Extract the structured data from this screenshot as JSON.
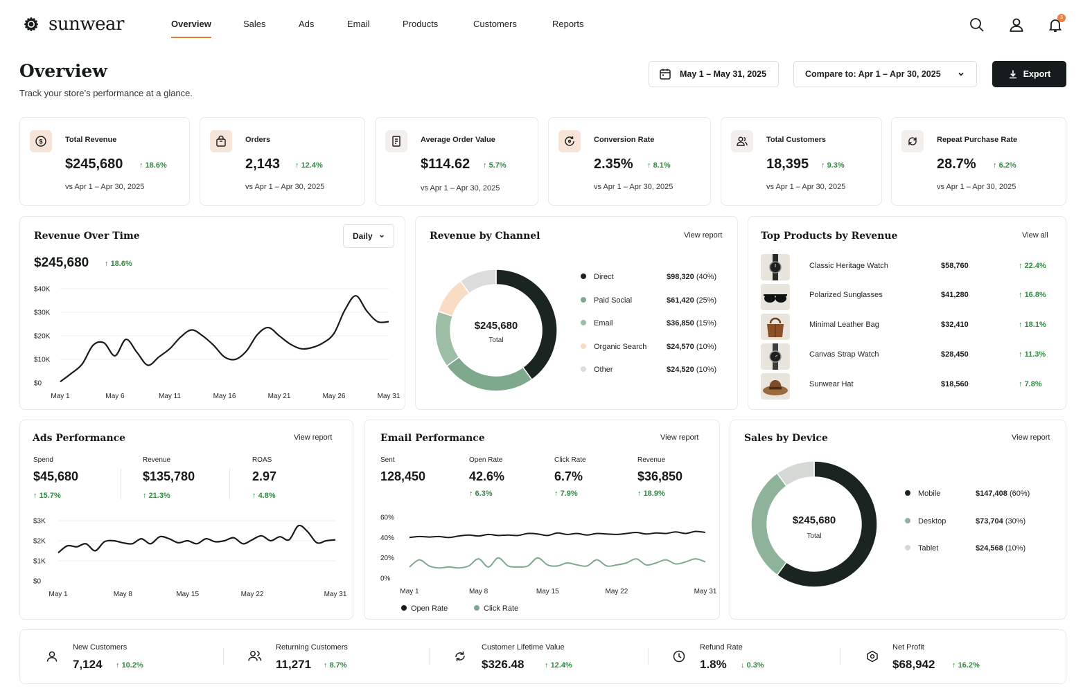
{
  "brand": {
    "name": "sunwear",
    "accent": "#e07a3f",
    "dark": "#161c1b",
    "green": "#2f8b3f"
  },
  "nav": {
    "tabs": [
      "Overview",
      "Sales",
      "Ads",
      "Email",
      "Products",
      "Customers",
      "Reports"
    ],
    "active": "Overview",
    "notification_count": "3"
  },
  "header": {
    "title": "Overview",
    "subtitle": "Track your store’s performance at a glance.",
    "date_range": "May 1 – May 31, 2025",
    "compare": "Compare to: Apr 1 – Apr 30, 2025",
    "export_label": "Export"
  },
  "kpis": [
    {
      "label": "Total Revenue",
      "value": "$245,680",
      "change": "18.6%",
      "vs": "vs Apr 1 – Apr 30, 2025",
      "icon": "dollar-icon"
    },
    {
      "label": "Orders",
      "value": "2,143",
      "change": "12.4%",
      "vs": "vs Apr 1 – Apr 30, 2025",
      "icon": "shopping-bag-icon"
    },
    {
      "label": "Average Order Value",
      "value": "$114.62",
      "change": "5.7%",
      "vs": "vs Apr 1 – Apr 30, 2025",
      "icon": "receipt-icon"
    },
    {
      "label": "Conversion Rate",
      "value": "2.35%",
      "change": "8.1%",
      "vs": "vs Apr 1 – Apr 30, 2025",
      "icon": "refresh-icon"
    },
    {
      "label": "Total Customers",
      "value": "18,395",
      "change": "9.3%",
      "vs": "vs Apr 1 – Apr 30, 2025",
      "icon": "users-icon"
    },
    {
      "label": "Repeat Purchase Rate",
      "value": "28.7%",
      "change": "6.2%",
      "vs": "vs Apr 1 – Apr 30, 2025",
      "icon": "repeat-icon"
    }
  ],
  "revenue_over_time": {
    "title": "Revenue Over Time",
    "granularity": "Daily",
    "total": "$245,680",
    "change": "18.6%"
  },
  "revenue_by_channel": {
    "title": "Revenue by Channel",
    "link": "View report",
    "center_value": "$245,680",
    "center_label": "Total",
    "rows": [
      {
        "name": "Direct",
        "value": "$98,320",
        "pct": "(40%)",
        "color": "#1a2421"
      },
      {
        "name": "Paid Social",
        "value": "$61,420",
        "pct": "(25%)",
        "color": "#7fa98c"
      },
      {
        "name": "Email",
        "value": "$36,850",
        "pct": "(15%)",
        "color": "#9dbda6"
      },
      {
        "name": "Organic Search",
        "value": "$24,570",
        "pct": "(10%)",
        "color": "#f9dcc4"
      },
      {
        "name": "Other",
        "value": "$24,520",
        "pct": "(10%)",
        "color": "#dcdcdc"
      }
    ]
  },
  "top_products": {
    "title": "Top Products by Revenue",
    "link": "View all",
    "rows": [
      {
        "name": "Classic Heritage Watch",
        "revenue": "$58,760",
        "change": "22.4%"
      },
      {
        "name": "Polarized Sunglasses",
        "revenue": "$41,280",
        "change": "16.8%"
      },
      {
        "name": "Minimal Leather Bag",
        "revenue": "$32,410",
        "change": "18.1%"
      },
      {
        "name": "Canvas Strap Watch",
        "revenue": "$28,450",
        "change": "11.3%"
      },
      {
        "name": "Sunwear Hat",
        "revenue": "$18,560",
        "change": "7.8%"
      }
    ]
  },
  "ads": {
    "title": "Ads Performance",
    "link": "View report",
    "metrics": [
      {
        "label": "Spend",
        "value": "$45,680",
        "change": "15.7%"
      },
      {
        "label": "Revenue",
        "value": "$135,780",
        "change": "21.3%"
      },
      {
        "label": "ROAS",
        "value": "2.97",
        "change": "4.8%"
      }
    ]
  },
  "email": {
    "title": "Email Performance",
    "link": "View report",
    "metrics": [
      {
        "label": "Sent",
        "value": "128,450",
        "change": ""
      },
      {
        "label": "Open Rate",
        "value": "42.6%",
        "change": "6.3%"
      },
      {
        "label": "Click Rate",
        "value": "6.7%",
        "change": "7.9%"
      },
      {
        "label": "Revenue",
        "value": "$36,850",
        "change": "18.9%"
      }
    ],
    "legend": [
      "Open Rate",
      "Click Rate"
    ]
  },
  "device": {
    "title": "Sales by Device",
    "link": "View report",
    "center_value": "$245,680",
    "center_label": "Total",
    "rows": [
      {
        "name": "Mobile",
        "value": "$147,408",
        "pct": "(60%)",
        "color": "#1a2421"
      },
      {
        "name": "Desktop",
        "value": "$73,704",
        "pct": "(30%)",
        "color": "#8fb39a"
      },
      {
        "name": "Tablet",
        "value": "$24,568",
        "pct": "(10%)",
        "color": "#d6d8d6"
      }
    ]
  },
  "footer": [
    {
      "label": "New Customers",
      "value": "7,124",
      "change": "10.2%",
      "dir": "up",
      "icon": "user-icon"
    },
    {
      "label": "Returning Customers",
      "value": "11,271",
      "change": "8.7%",
      "dir": "up",
      "icon": "users-icon"
    },
    {
      "label": "Customer Lifetime Value",
      "value": "$326.48",
      "change": "12.4%",
      "dir": "up",
      "icon": "lifetime-icon"
    },
    {
      "label": "Refund Rate",
      "value": "1.8%",
      "change": "0.3%",
      "dir": "down",
      "icon": "clock-icon"
    },
    {
      "label": "Net Profit",
      "value": "$68,942",
      "change": "16.2%",
      "dir": "up",
      "icon": "target-icon"
    }
  ],
  "chart_data": [
    {
      "type": "line",
      "title": "Revenue Over Time",
      "x": [
        "May 1",
        "May 2",
        "May 3",
        "May 4",
        "May 5",
        "May 6",
        "May 7",
        "May 8",
        "May 9",
        "May 10",
        "May 11",
        "May 12",
        "May 13",
        "May 14",
        "May 15",
        "May 16",
        "May 17",
        "May 18",
        "May 19",
        "May 20",
        "May 21",
        "May 22",
        "May 23",
        "May 24",
        "May 25",
        "May 26",
        "May 27",
        "May 28",
        "May 29",
        "May 30",
        "May 31"
      ],
      "xticks": [
        "May 1",
        "May 6",
        "May 11",
        "May 16",
        "May 21",
        "May 26",
        "May 31"
      ],
      "yticks": [
        "$0",
        "$10K",
        "$20K",
        "$30K",
        "$40K"
      ],
      "ylim": [
        0,
        40000
      ],
      "series": [
        {
          "values": [
            500,
            4000,
            8000,
            16000,
            17000,
            11500,
            18500,
            13000,
            7500,
            11000,
            14500,
            19500,
            22500,
            20000,
            16000,
            11000,
            10000,
            13500,
            20500,
            23500,
            20000,
            16500,
            14500,
            15000,
            17000,
            21000,
            31000,
            37000,
            30500,
            26000,
            26000
          ]
        }
      ],
      "grid": true
    },
    {
      "type": "pie",
      "title": "Revenue by Channel",
      "categories": [
        "Direct",
        "Paid Social",
        "Email",
        "Organic Search",
        "Other"
      ],
      "values": [
        98320,
        61420,
        36850,
        24570,
        24520
      ]
    },
    {
      "type": "line",
      "title": "Ads Performance",
      "x": [
        "May 1",
        "May 2",
        "May 3",
        "May 4",
        "May 5",
        "May 6",
        "May 7",
        "May 8",
        "May 9",
        "May 10",
        "May 11",
        "May 12",
        "May 13",
        "May 14",
        "May 15",
        "May 16",
        "May 17",
        "May 18",
        "May 19",
        "May 20",
        "May 21",
        "May 22",
        "May 23",
        "May 24",
        "May 25",
        "May 26",
        "May 27",
        "May 28",
        "May 29",
        "May 30",
        "May 31"
      ],
      "xticks": [
        "May 1",
        "May 8",
        "May 15",
        "May 22",
        "May 31"
      ],
      "yticks": [
        "$0",
        "$1K",
        "$2K",
        "$3K"
      ],
      "ylim": [
        0,
        3000
      ],
      "series": [
        {
          "values": [
            1400,
            1750,
            1700,
            1850,
            1500,
            1950,
            2000,
            1900,
            1850,
            2100,
            1850,
            2200,
            2100,
            1900,
            2000,
            1850,
            2100,
            1950,
            2000,
            2150,
            1850,
            2050,
            2250,
            2000,
            2200,
            2050,
            2750,
            2450,
            1900,
            2000,
            2050
          ]
        }
      ],
      "grid": true
    },
    {
      "type": "line",
      "title": "Email Performance",
      "x": [
        "May 1",
        "May 2",
        "May 3",
        "May 4",
        "May 5",
        "May 6",
        "May 7",
        "May 8",
        "May 9",
        "May 10",
        "May 11",
        "May 12",
        "May 13",
        "May 14",
        "May 15",
        "May 16",
        "May 17",
        "May 18",
        "May 19",
        "May 20",
        "May 21",
        "May 22",
        "May 23",
        "May 24",
        "May 25",
        "May 26",
        "May 27",
        "May 28",
        "May 29",
        "May 30",
        "May 31"
      ],
      "xticks": [
        "May 1",
        "May 8",
        "May 15",
        "May 22",
        "May 31"
      ],
      "yticks": [
        "0%",
        "20%",
        "40%",
        "60%"
      ],
      "ylim": [
        0,
        60
      ],
      "series": [
        {
          "name": "Open Rate",
          "values": [
            40,
            41,
            40.5,
            41,
            40,
            41.5,
            42.5,
            41.5,
            43,
            42,
            42.5,
            42,
            44,
            43.5,
            42,
            44.5,
            43,
            44,
            42.5,
            44,
            43.5,
            43,
            44,
            45,
            43.5,
            44.5,
            44,
            45.5,
            44,
            46,
            45
          ]
        },
        {
          "name": "Click Rate",
          "values": [
            11,
            18,
            12,
            10,
            11,
            10,
            12,
            19,
            11,
            20,
            12,
            11,
            12,
            20,
            13,
            12,
            15,
            13,
            12,
            18,
            12,
            13,
            15,
            19,
            13,
            15,
            18,
            14,
            16,
            19,
            16
          ]
        }
      ],
      "legend": "bottom"
    },
    {
      "type": "pie",
      "title": "Sales by Device",
      "categories": [
        "Mobile",
        "Desktop",
        "Tablet"
      ],
      "values": [
        147408,
        73704,
        24568
      ]
    }
  ]
}
